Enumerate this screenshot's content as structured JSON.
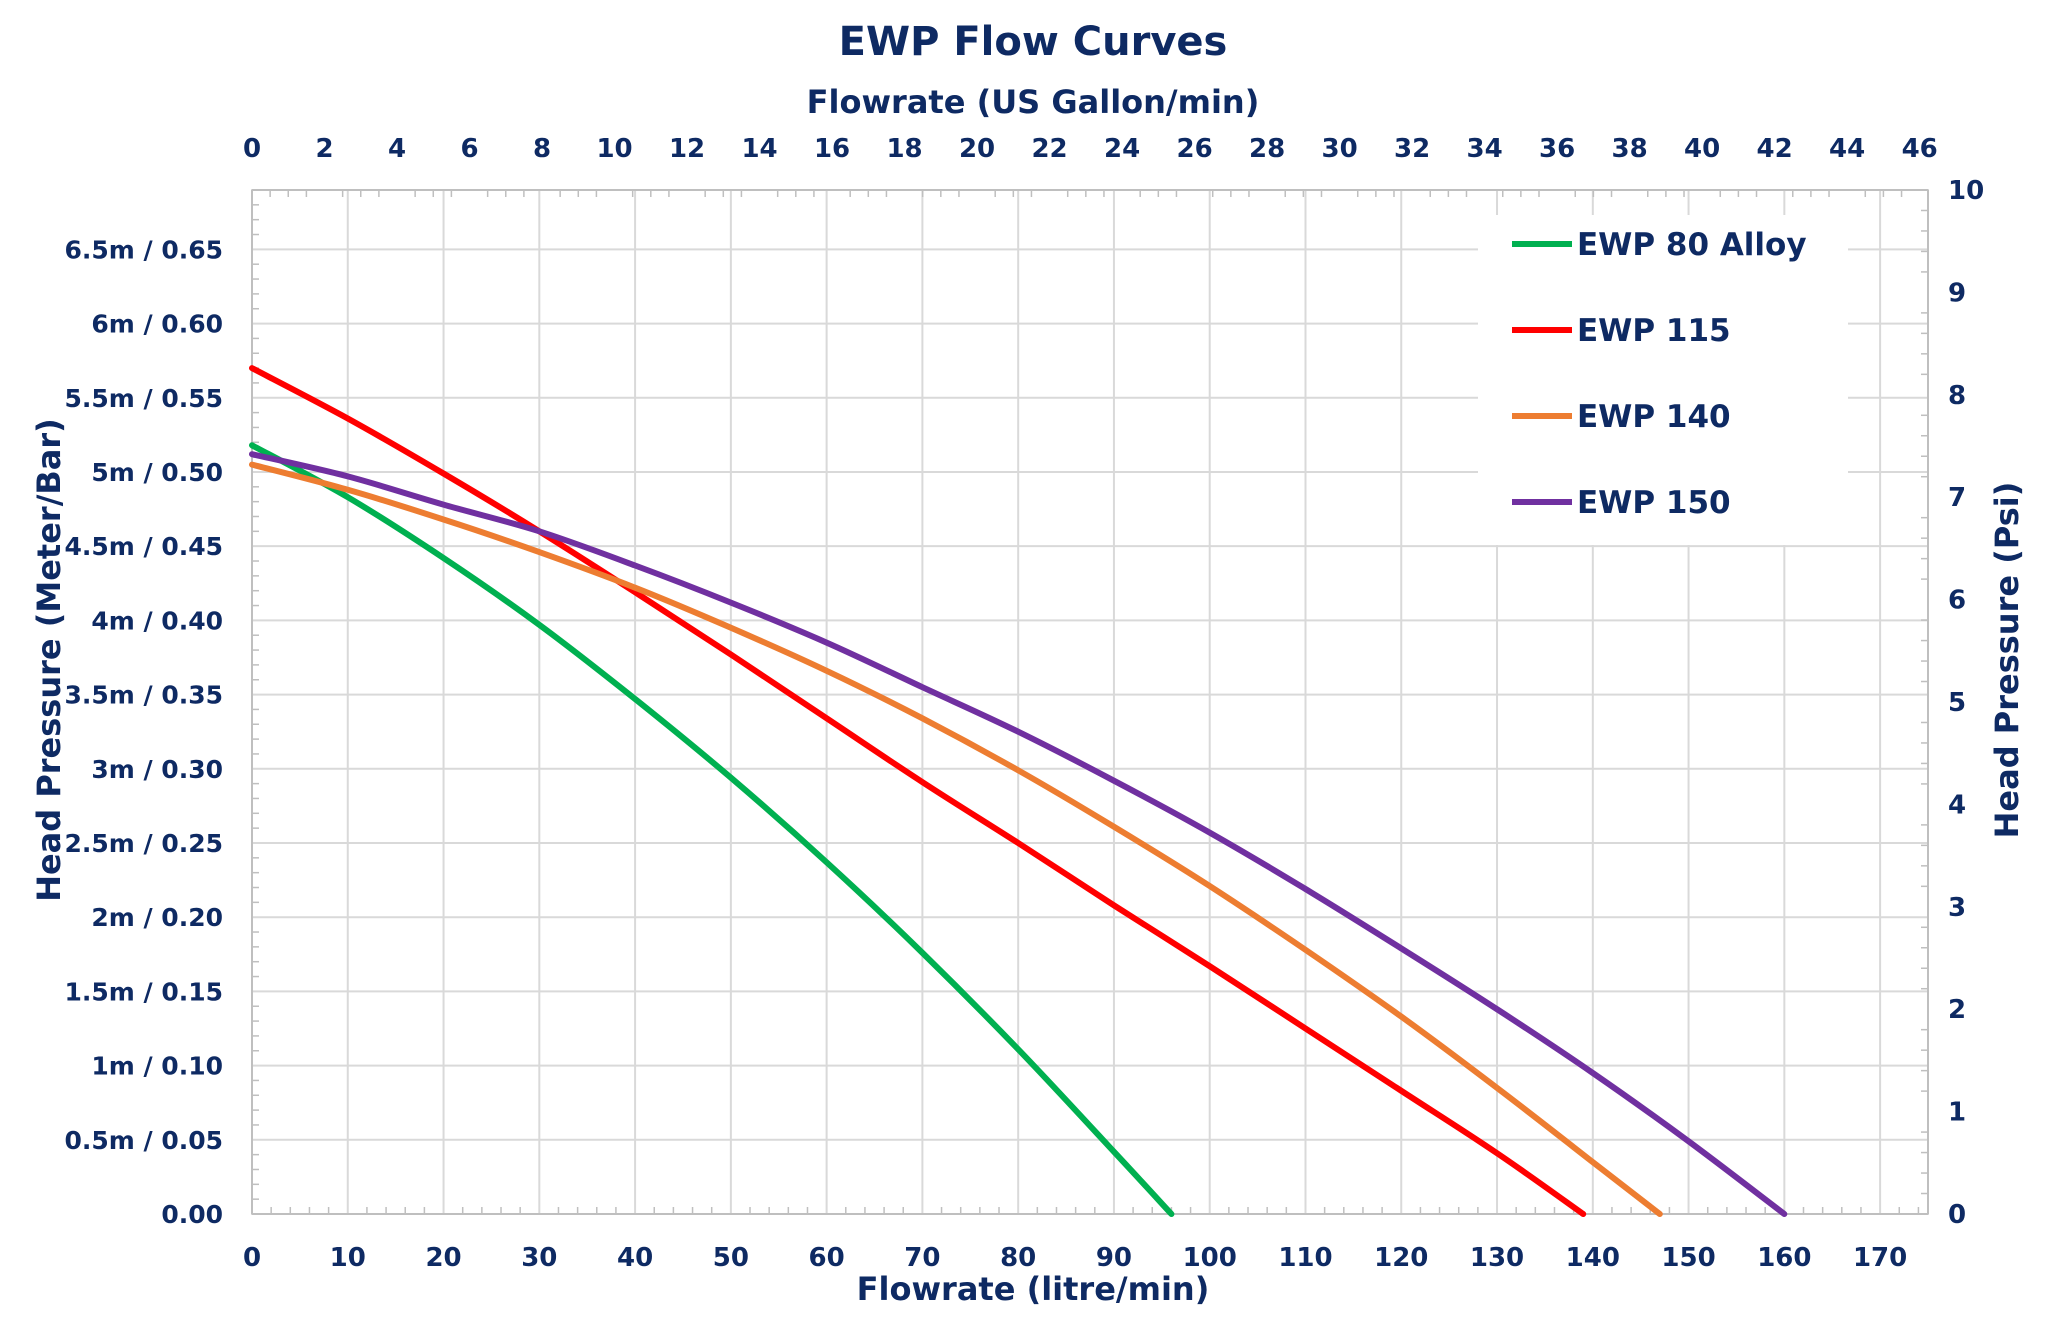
{
  "chart_data": {
    "type": "line",
    "title": "EWP Flow Curves",
    "xlabel": "Flowrate (litre/min)",
    "x2label": "Flowrate (US Gallon/min)",
    "ylabel": "Head Pressure (Meter/Bar)",
    "y2label": "Head Pressure (Psi)",
    "xlim": [
      0,
      175
    ],
    "x2lim": [
      0,
      46.23
    ],
    "ylim": [
      0,
      0.69
    ],
    "y2lim": [
      0,
      10
    ],
    "x_ticks": [
      "0",
      "10",
      "20",
      "30",
      "40",
      "50",
      "60",
      "70",
      "80",
      "90",
      "100",
      "110",
      "120",
      "130",
      "140",
      "150",
      "160",
      "170"
    ],
    "x_tick_values": [
      0,
      10,
      20,
      30,
      40,
      50,
      60,
      70,
      80,
      90,
      100,
      110,
      120,
      130,
      140,
      150,
      160,
      170
    ],
    "x2_ticks": [
      "0",
      "2",
      "4",
      "6",
      "8",
      "10",
      "12",
      "14",
      "16",
      "18",
      "20",
      "22",
      "24",
      "26",
      "28",
      "30",
      "32",
      "34",
      "36",
      "38",
      "40",
      "42",
      "44",
      "46"
    ],
    "x2_tick_values": [
      0,
      2,
      4,
      6,
      8,
      10,
      12,
      14,
      16,
      18,
      20,
      22,
      24,
      26,
      28,
      30,
      32,
      34,
      36,
      38,
      40,
      42,
      44,
      46
    ],
    "y_ticks": [
      "0.00",
      "0.5m / 0.05",
      "1m / 0.10",
      "1.5m / 0.15",
      "2m / 0.20",
      "2.5m / 0.25",
      "3m / 0.30",
      "3.5m / 0.35",
      "4m / 0.40",
      "4.5m / 0.45",
      "5m / 0.50",
      "5.5m / 0.55",
      "6m / 0.60",
      "6.5m / 0.65"
    ],
    "y_tick_values": [
      0,
      0.05,
      0.1,
      0.15,
      0.2,
      0.25,
      0.3,
      0.35,
      0.4,
      0.45,
      0.5,
      0.55,
      0.6,
      0.65
    ],
    "y2_ticks": [
      "0",
      "1",
      "2",
      "3",
      "4",
      "5",
      "6",
      "7",
      "8",
      "9",
      "10"
    ],
    "y2_tick_values": [
      0,
      1,
      2,
      3,
      4,
      5,
      6,
      7,
      8,
      9,
      10
    ],
    "grid": true,
    "legend_position": "top-right",
    "series": [
      {
        "name": "EWP 80 Alloy",
        "color": "#00b050",
        "x": [
          0,
          10,
          20,
          30,
          40,
          50,
          60,
          70,
          80,
          90,
          96
        ],
        "y": [
          0.518,
          0.483,
          0.442,
          0.397,
          0.347,
          0.294,
          0.237,
          0.176,
          0.111,
          0.042,
          0
        ]
      },
      {
        "name": "EWP 115",
        "color": "#ff0000",
        "x": [
          0,
          10,
          20,
          30,
          40,
          50,
          60,
          70,
          80,
          90,
          100,
          110,
          120,
          130,
          139
        ],
        "y": [
          0.57,
          0.536,
          0.499,
          0.46,
          0.419,
          0.377,
          0.334,
          0.291,
          0.25,
          0.208,
          0.167,
          0.125,
          0.083,
          0.041,
          0
        ]
      },
      {
        "name": "EWP 140",
        "color": "#ed7d31",
        "x": [
          0,
          10,
          20,
          30,
          40,
          50,
          60,
          70,
          80,
          90,
          100,
          110,
          120,
          130,
          140,
          147
        ],
        "y": [
          0.505,
          0.488,
          0.468,
          0.446,
          0.422,
          0.395,
          0.366,
          0.334,
          0.299,
          0.261,
          0.221,
          0.178,
          0.133,
          0.085,
          0.035,
          0
        ]
      },
      {
        "name": "EWP 150",
        "color": "#7030a0",
        "x": [
          0,
          10,
          20,
          30,
          40,
          50,
          60,
          70,
          80,
          90,
          100,
          110,
          120,
          130,
          140,
          150,
          160
        ],
        "y": [
          0.512,
          0.497,
          0.478,
          0.46,
          0.437,
          0.412,
          0.385,
          0.355,
          0.325,
          0.292,
          0.257,
          0.219,
          0.179,
          0.138,
          0.095,
          0.049,
          0
        ]
      }
    ]
  }
}
